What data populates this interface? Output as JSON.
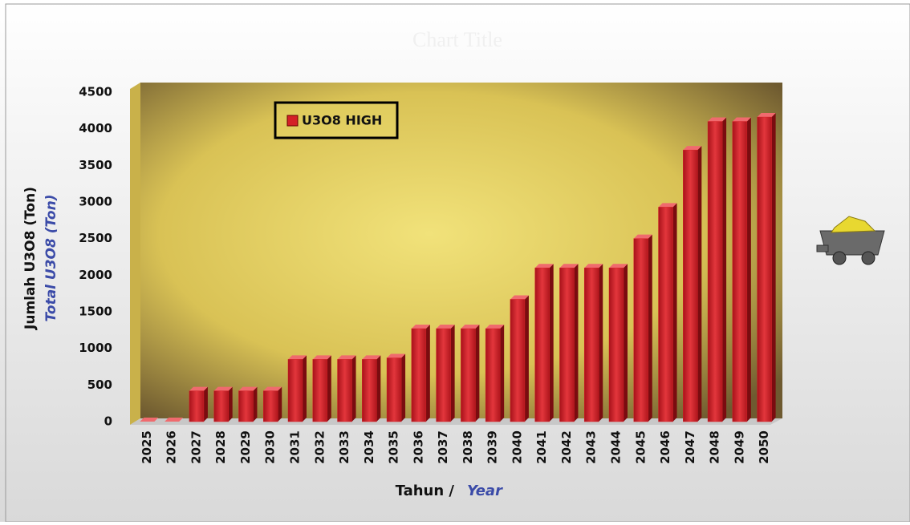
{
  "chart_data": {
    "type": "bar",
    "title": "Chart Title",
    "ylabel": "Jumlah U3O8 (Ton)",
    "ylabel_en": "Total U3O8 (Ton)",
    "xlabel": "Tahun /",
    "xlabel_en": "Year",
    "categories": [
      "2025",
      "2026",
      "2027",
      "2028",
      "2029",
      "2030",
      "2031",
      "2032",
      "2033",
      "2034",
      "2035",
      "2036",
      "2037",
      "2038",
      "2039",
      "2040",
      "2041",
      "2042",
      "2043",
      "2044",
      "2045",
      "2046",
      "2047",
      "2048",
      "2049",
      "2050"
    ],
    "series": [
      {
        "name": "U3O8 HIGH",
        "color": "#d42027",
        "values": [
          0,
          0,
          420,
          420,
          420,
          420,
          850,
          850,
          850,
          850,
          870,
          1270,
          1270,
          1270,
          1270,
          1670,
          2100,
          2100,
          2100,
          2100,
          2500,
          2930,
          3710,
          4100,
          4100,
          4160
        ]
      }
    ],
    "ylim": [
      0,
      4500
    ],
    "yticks": [
      0,
      500,
      1000,
      1500,
      2000,
      2500,
      3000,
      3500,
      4000,
      4500
    ],
    "legend": "top-left"
  }
}
